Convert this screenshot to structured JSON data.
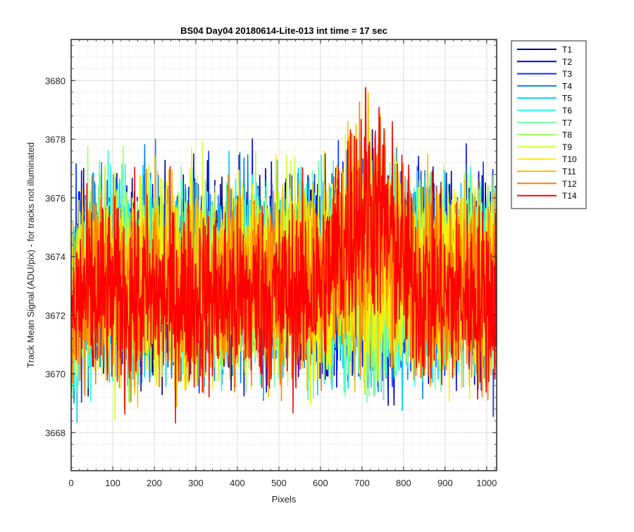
{
  "chart_data": {
    "type": "line",
    "title": "BS04 Day04 20180614-Lite-013 int time = 17 sec",
    "xlabel": "Pixels",
    "ylabel": "Track Mean Signal (ADU/pix) - for tracks not illuminated",
    "xlim": [
      0,
      1024
    ],
    "ylim": [
      3666.7,
      3681.4
    ],
    "xticks": [
      0,
      100,
      200,
      300,
      400,
      500,
      600,
      700,
      800,
      900,
      1000
    ],
    "yticks": [
      3668,
      3670,
      3672,
      3674,
      3676,
      3678,
      3680
    ],
    "x_minor_ticks_step": 20,
    "y_minor_ticks_step": 0.4,
    "grid": "major and minor",
    "legend_position": "outside-right",
    "x": {
      "start": 1,
      "end": 1024,
      "step": 1
    },
    "series": [
      {
        "name": "T1",
        "color": "#00008F",
        "baseline": 3673.4,
        "noise": 1.6,
        "bump": 0
      },
      {
        "name": "T2",
        "color": "#0000DF",
        "baseline": 3673.4,
        "noise": 1.6,
        "bump": 0
      },
      {
        "name": "T3",
        "color": "#0030FF",
        "baseline": 3673.3,
        "noise": 1.6,
        "bump": 0
      },
      {
        "name": "T4",
        "color": "#0080FF",
        "baseline": 3673.3,
        "noise": 1.6,
        "bump": 0
      },
      {
        "name": "T5",
        "color": "#00CFFF",
        "baseline": 3673.3,
        "noise": 1.6,
        "bump": 0
      },
      {
        "name": "T6",
        "color": "#20FFDF",
        "baseline": 3673.3,
        "noise": 1.6,
        "bump": 0
      },
      {
        "name": "T7",
        "color": "#70FFA0",
        "baseline": 3673.3,
        "noise": 1.6,
        "bump": 0
      },
      {
        "name": "T8",
        "color": "#9FFF60",
        "baseline": 3673.3,
        "noise": 1.6,
        "bump": 0
      },
      {
        "name": "T9",
        "color": "#CFFF30",
        "baseline": 3673.2,
        "noise": 1.6,
        "bump": 0.5
      },
      {
        "name": "T10",
        "color": "#FFEF00",
        "baseline": 3673.2,
        "noise": 1.6,
        "bump": 1.0
      },
      {
        "name": "T11",
        "color": "#FFBF00",
        "baseline": 3673.1,
        "noise": 1.6,
        "bump": 1.5
      },
      {
        "name": "T12",
        "color": "#FF8000",
        "baseline": 3673.0,
        "noise": 1.6,
        "bump": 2.0
      },
      {
        "name": "T14",
        "color": "#FF0000",
        "baseline": 3672.6,
        "noise": 1.6,
        "bump": 3.2,
        "bump_center": 715,
        "bump_width": 85
      }
    ]
  }
}
